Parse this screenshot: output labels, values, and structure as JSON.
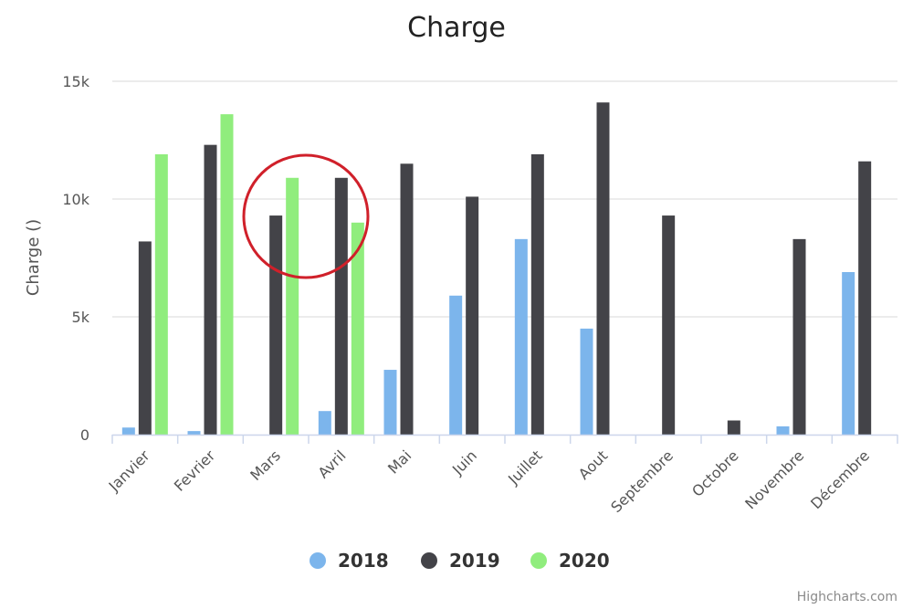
{
  "chart_data": {
    "type": "bar",
    "title": "Charge",
    "ylabel": "Charge ()",
    "xlabel": "",
    "ylim": [
      0,
      15000
    ],
    "yticks": [
      0,
      5000,
      10000,
      15000
    ],
    "ytick_labels": [
      "0",
      "5k",
      "10k",
      "15k"
    ],
    "categories": [
      "Janvier",
      "Fevrier",
      "Mars",
      "Avril",
      "Mai",
      "Juin",
      "Juillet",
      "Aout",
      "Septembre",
      "Octobre",
      "Novembre",
      "Décembre"
    ],
    "series": [
      {
        "name": "2018",
        "color": "#7cb5ec",
        "values": [
          300,
          150,
          0,
          1000,
          2750,
          5900,
          8300,
          4500,
          0,
          0,
          350,
          6900
        ]
      },
      {
        "name": "2019",
        "color": "#434348",
        "values": [
          8200,
          12300,
          9300,
          10900,
          11500,
          10100,
          11900,
          14100,
          9300,
          600,
          8300,
          11600
        ]
      },
      {
        "name": "2020",
        "color": "#90ed7d",
        "values": [
          11900,
          13600,
          10900,
          9000,
          null,
          null,
          null,
          null,
          null,
          null,
          null,
          null
        ]
      }
    ],
    "grid": true,
    "legend_position": "bottom-center",
    "annotation": {
      "shape": "ellipse",
      "color": "#d0202a",
      "around_categories": [
        "Mars",
        "Avril"
      ]
    }
  },
  "credits": "Highcharts.com"
}
